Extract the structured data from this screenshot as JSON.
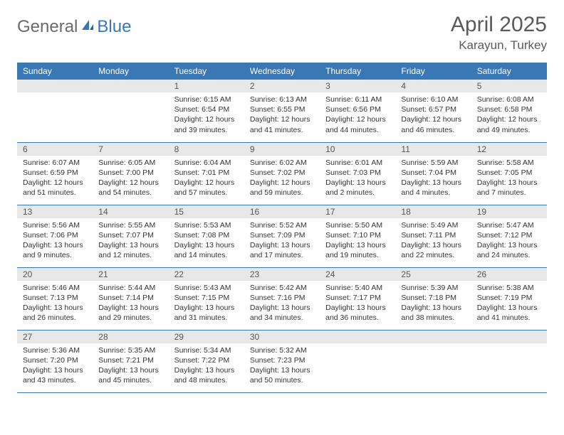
{
  "brand": {
    "word1": "General",
    "word2": "Blue"
  },
  "title": "April 2025",
  "location": "Karayun, Turkey",
  "colors": {
    "brand_blue": "#3a78b5",
    "brand_gray": "#6a6a6a",
    "header_bg": "#3a78b5",
    "header_fg": "#ffffff",
    "daynum_bg": "#e8e8e8",
    "rule": "#3a78b5",
    "text": "#333333",
    "background": "#ffffff"
  },
  "fonts": {
    "title_size": 30,
    "location_size": 17,
    "dayhead_size": 12,
    "cell_size": 10.5
  },
  "day_labels": [
    "Sunday",
    "Monday",
    "Tuesday",
    "Wednesday",
    "Thursday",
    "Friday",
    "Saturday"
  ],
  "weeks": [
    [
      null,
      null,
      {
        "n": "1",
        "sr": "6:15 AM",
        "ss": "6:54 PM",
        "dl": "12 hours and 39 minutes."
      },
      {
        "n": "2",
        "sr": "6:13 AM",
        "ss": "6:55 PM",
        "dl": "12 hours and 41 minutes."
      },
      {
        "n": "3",
        "sr": "6:11 AM",
        "ss": "6:56 PM",
        "dl": "12 hours and 44 minutes."
      },
      {
        "n": "4",
        "sr": "6:10 AM",
        "ss": "6:57 PM",
        "dl": "12 hours and 46 minutes."
      },
      {
        "n": "5",
        "sr": "6:08 AM",
        "ss": "6:58 PM",
        "dl": "12 hours and 49 minutes."
      }
    ],
    [
      {
        "n": "6",
        "sr": "6:07 AM",
        "ss": "6:59 PM",
        "dl": "12 hours and 51 minutes."
      },
      {
        "n": "7",
        "sr": "6:05 AM",
        "ss": "7:00 PM",
        "dl": "12 hours and 54 minutes."
      },
      {
        "n": "8",
        "sr": "6:04 AM",
        "ss": "7:01 PM",
        "dl": "12 hours and 57 minutes."
      },
      {
        "n": "9",
        "sr": "6:02 AM",
        "ss": "7:02 PM",
        "dl": "12 hours and 59 minutes."
      },
      {
        "n": "10",
        "sr": "6:01 AM",
        "ss": "7:03 PM",
        "dl": "13 hours and 2 minutes."
      },
      {
        "n": "11",
        "sr": "5:59 AM",
        "ss": "7:04 PM",
        "dl": "13 hours and 4 minutes."
      },
      {
        "n": "12",
        "sr": "5:58 AM",
        "ss": "7:05 PM",
        "dl": "13 hours and 7 minutes."
      }
    ],
    [
      {
        "n": "13",
        "sr": "5:56 AM",
        "ss": "7:06 PM",
        "dl": "13 hours and 9 minutes."
      },
      {
        "n": "14",
        "sr": "5:55 AM",
        "ss": "7:07 PM",
        "dl": "13 hours and 12 minutes."
      },
      {
        "n": "15",
        "sr": "5:53 AM",
        "ss": "7:08 PM",
        "dl": "13 hours and 14 minutes."
      },
      {
        "n": "16",
        "sr": "5:52 AM",
        "ss": "7:09 PM",
        "dl": "13 hours and 17 minutes."
      },
      {
        "n": "17",
        "sr": "5:50 AM",
        "ss": "7:10 PM",
        "dl": "13 hours and 19 minutes."
      },
      {
        "n": "18",
        "sr": "5:49 AM",
        "ss": "7:11 PM",
        "dl": "13 hours and 22 minutes."
      },
      {
        "n": "19",
        "sr": "5:47 AM",
        "ss": "7:12 PM",
        "dl": "13 hours and 24 minutes."
      }
    ],
    [
      {
        "n": "20",
        "sr": "5:46 AM",
        "ss": "7:13 PM",
        "dl": "13 hours and 26 minutes."
      },
      {
        "n": "21",
        "sr": "5:44 AM",
        "ss": "7:14 PM",
        "dl": "13 hours and 29 minutes."
      },
      {
        "n": "22",
        "sr": "5:43 AM",
        "ss": "7:15 PM",
        "dl": "13 hours and 31 minutes."
      },
      {
        "n": "23",
        "sr": "5:42 AM",
        "ss": "7:16 PM",
        "dl": "13 hours and 34 minutes."
      },
      {
        "n": "24",
        "sr": "5:40 AM",
        "ss": "7:17 PM",
        "dl": "13 hours and 36 minutes."
      },
      {
        "n": "25",
        "sr": "5:39 AM",
        "ss": "7:18 PM",
        "dl": "13 hours and 38 minutes."
      },
      {
        "n": "26",
        "sr": "5:38 AM",
        "ss": "7:19 PM",
        "dl": "13 hours and 41 minutes."
      }
    ],
    [
      {
        "n": "27",
        "sr": "5:36 AM",
        "ss": "7:20 PM",
        "dl": "13 hours and 43 minutes."
      },
      {
        "n": "28",
        "sr": "5:35 AM",
        "ss": "7:21 PM",
        "dl": "13 hours and 45 minutes."
      },
      {
        "n": "29",
        "sr": "5:34 AM",
        "ss": "7:22 PM",
        "dl": "13 hours and 48 minutes."
      },
      {
        "n": "30",
        "sr": "5:32 AM",
        "ss": "7:23 PM",
        "dl": "13 hours and 50 minutes."
      },
      null,
      null,
      null
    ]
  ],
  "labels": {
    "sunrise": "Sunrise:",
    "sunset": "Sunset:",
    "daylight": "Daylight:"
  }
}
